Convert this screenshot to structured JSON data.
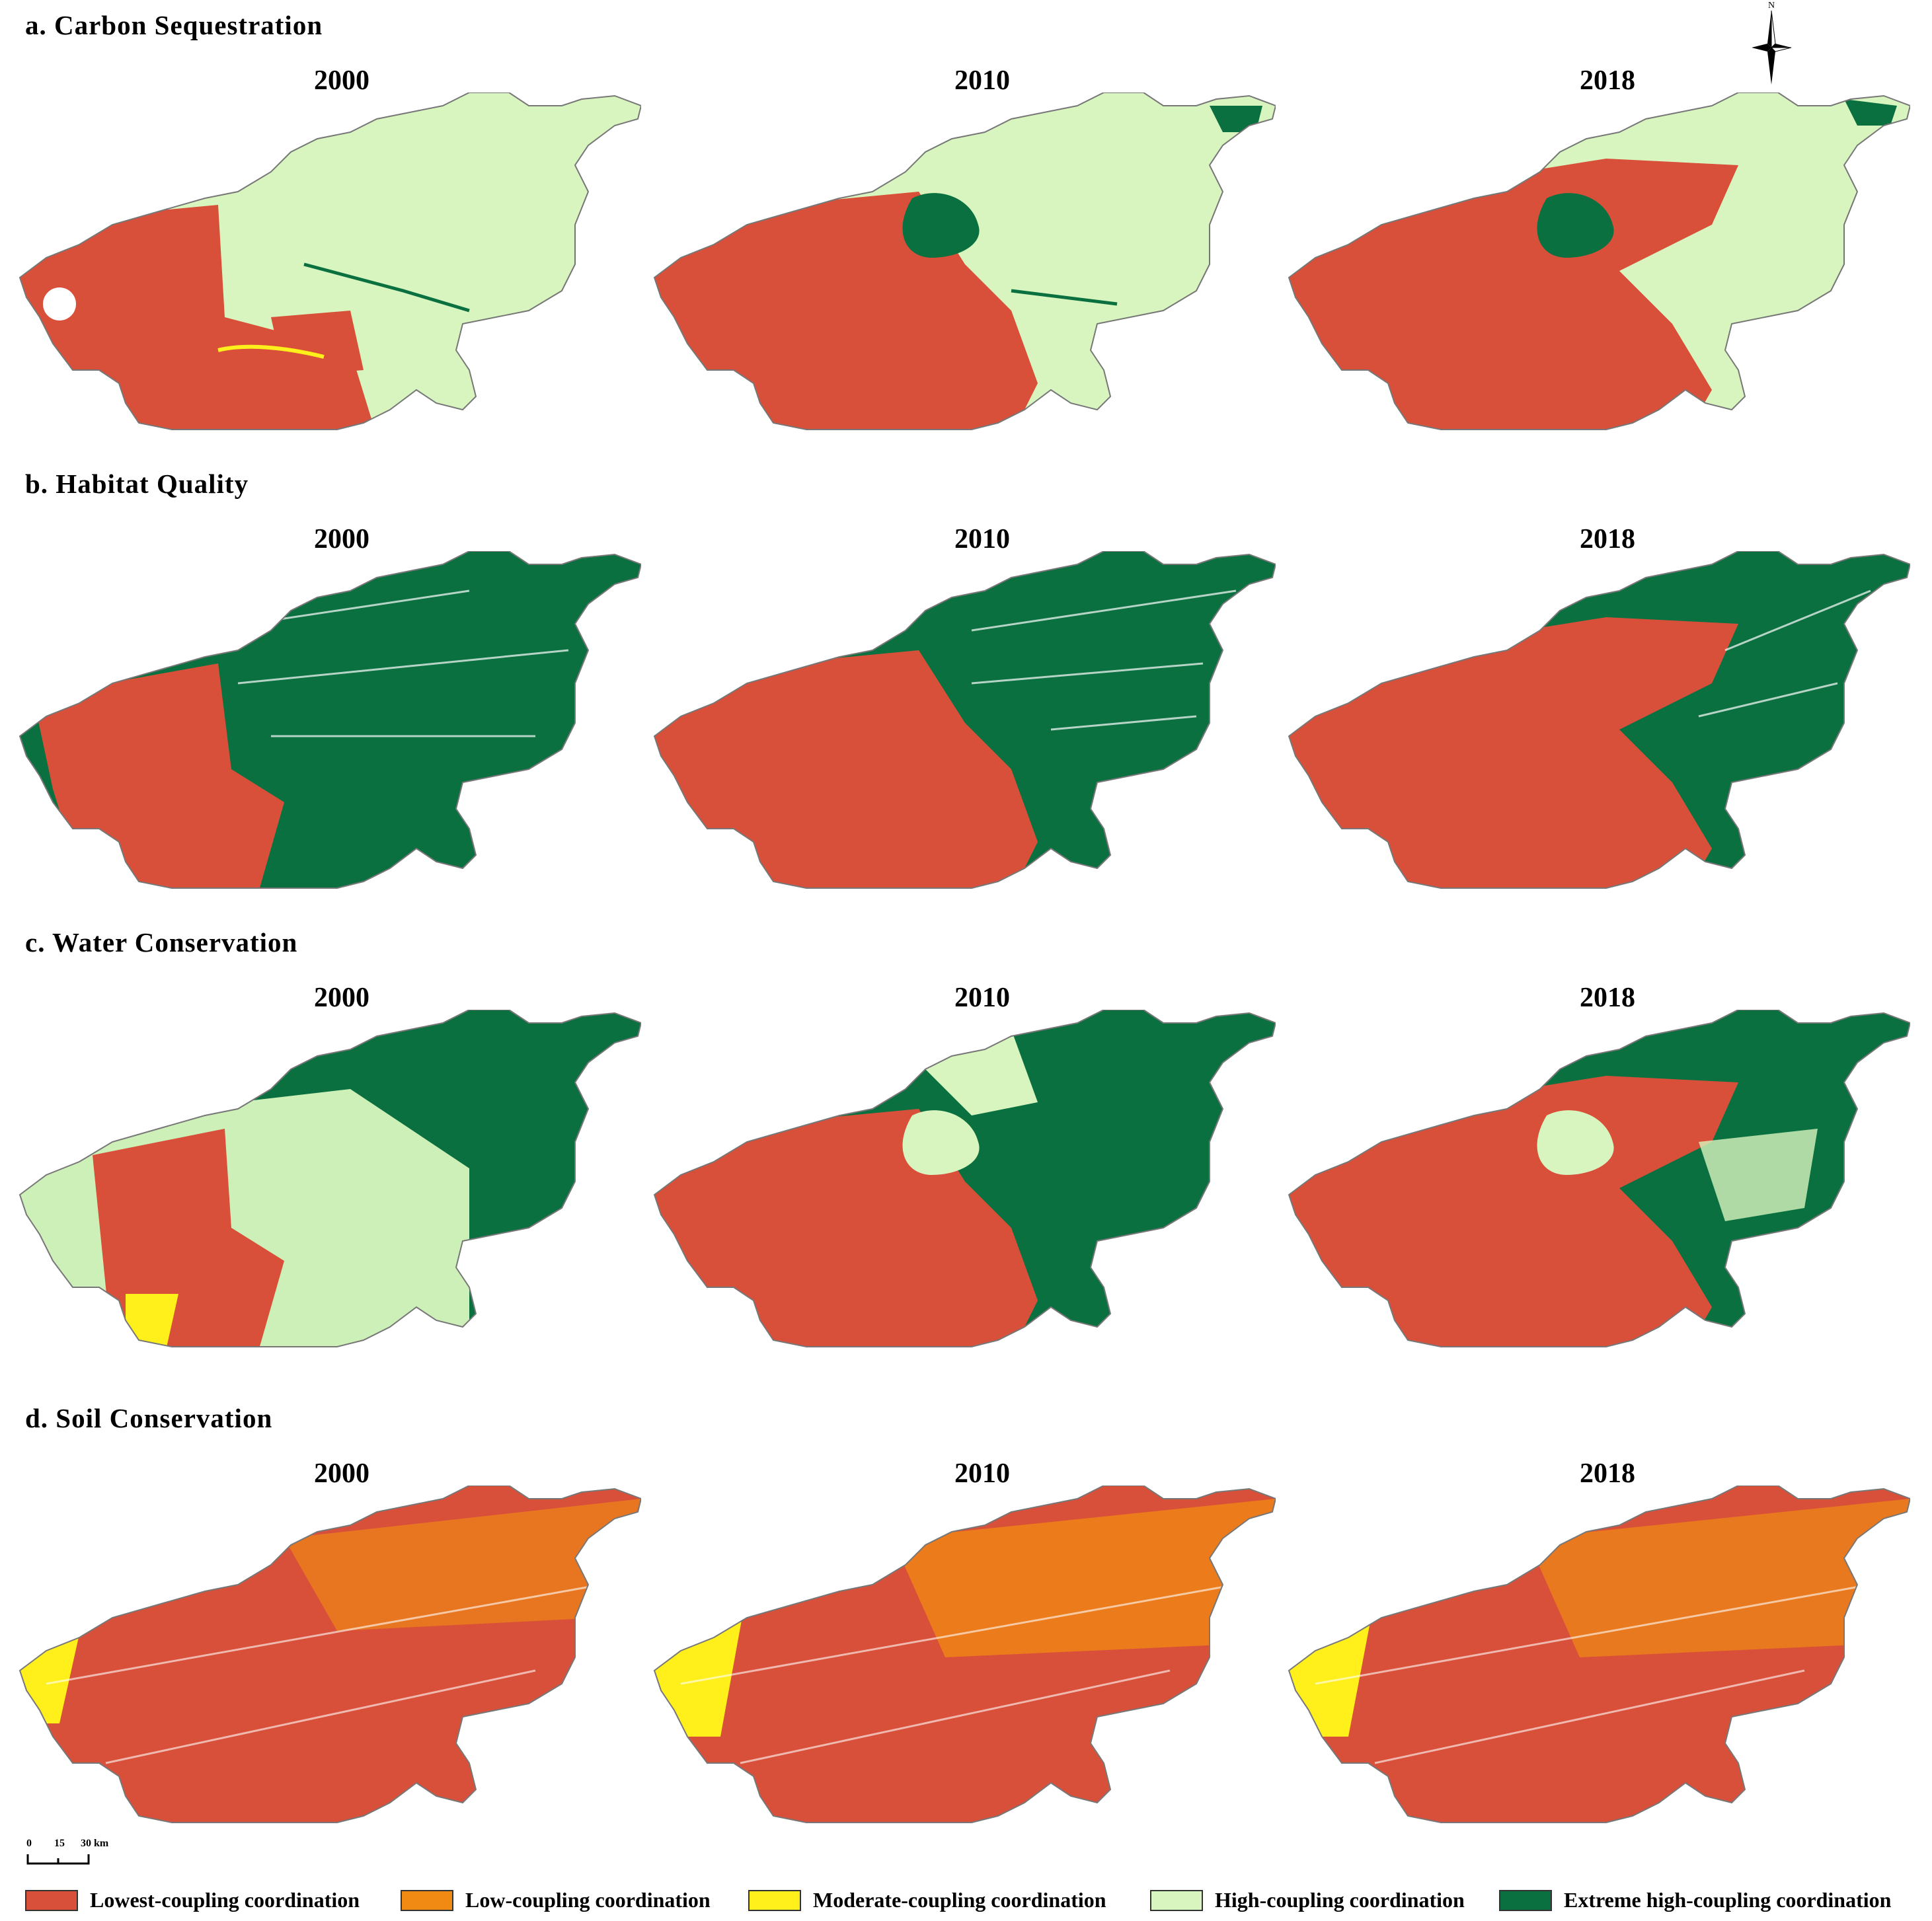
{
  "sections": [
    {
      "title": "a. Carbon Sequestration",
      "years": [
        "2000",
        "2010",
        "2018"
      ]
    },
    {
      "title": "b. Habitat Quality",
      "years": [
        "2000",
        "2010",
        "2018"
      ]
    },
    {
      "title": "c. Water Conservation",
      "years": [
        "2000",
        "2010",
        "2018"
      ]
    },
    {
      "title": "d. Soil Conservation",
      "years": [
        "2000",
        "2010",
        "2018"
      ]
    }
  ],
  "north_arrow": {
    "label": "N"
  },
  "scale_bar": {
    "ticks": [
      "0",
      "15",
      "30 km"
    ]
  },
  "legend": [
    {
      "label": "Lowest-coupling coordination",
      "color": "#d9503a"
    },
    {
      "label": "Low-coupling coordination",
      "color": "#f08a12"
    },
    {
      "label": "Moderate-coupling coordination",
      "color": "#ffef1a"
    },
    {
      "label": "High-coupling coordination",
      "color": "#d8f5bf"
    },
    {
      "label": "Extreme high-coupling coordination",
      "color": "#0a7040"
    }
  ]
}
